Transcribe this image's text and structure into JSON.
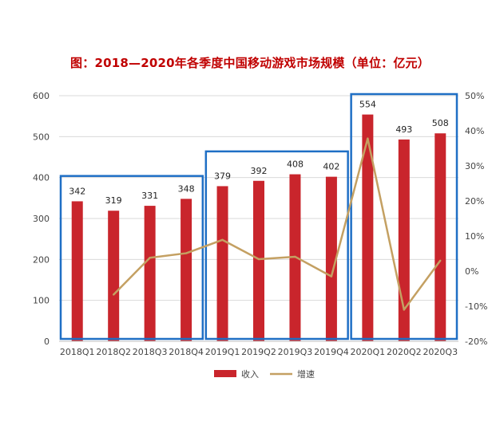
{
  "chart_data": {
    "type": "bar",
    "title": "图：2018—2020年各季度中国移动游戏市场规模（单位：亿元）",
    "categories": [
      "2018Q1",
      "2018Q2",
      "2018Q3",
      "2018Q4",
      "2019Q1",
      "2019Q2",
      "2019Q3",
      "2019Q4",
      "2020Q1",
      "2020Q2",
      "2020Q3"
    ],
    "series": [
      {
        "name": "收入",
        "kind": "bar",
        "axis": "left",
        "values": [
          342,
          319,
          331,
          348,
          379,
          392,
          408,
          402,
          554,
          493,
          508
        ],
        "color": "#c9252c"
      },
      {
        "name": "增速",
        "kind": "line",
        "axis": "right",
        "values": [
          null,
          -6.7,
          3.8,
          5.1,
          8.9,
          3.4,
          4.1,
          -1.5,
          37.8,
          -11.0,
          3.0
        ],
        "color": "#c4a062"
      }
    ],
    "data_labels": [
      "342",
      "319",
      "331",
      "348",
      "379",
      "392",
      "408",
      "402",
      "554",
      "493",
      "508"
    ],
    "y_left": {
      "ylim": [
        0,
        600
      ],
      "ticks": [
        "0",
        "100",
        "200",
        "300",
        "400",
        "500",
        "600"
      ]
    },
    "y_right": {
      "ylim": [
        -20,
        50
      ],
      "ticks": [
        "-20%",
        "-10%",
        "0%",
        "10%",
        "20%",
        "30%",
        "40%",
        "50%"
      ]
    },
    "grid": true,
    "legend_position": "bottom",
    "highlight_groups": [
      {
        "from": "2018Q1",
        "to": "2018Q4",
        "ytop": 400
      },
      {
        "from": "2019Q1",
        "to": "2019Q4",
        "ytop": 460
      },
      {
        "from": "2020Q1",
        "to": "2020Q3",
        "ytop": 600
      }
    ],
    "highlight_color": "#1f6fc5"
  }
}
